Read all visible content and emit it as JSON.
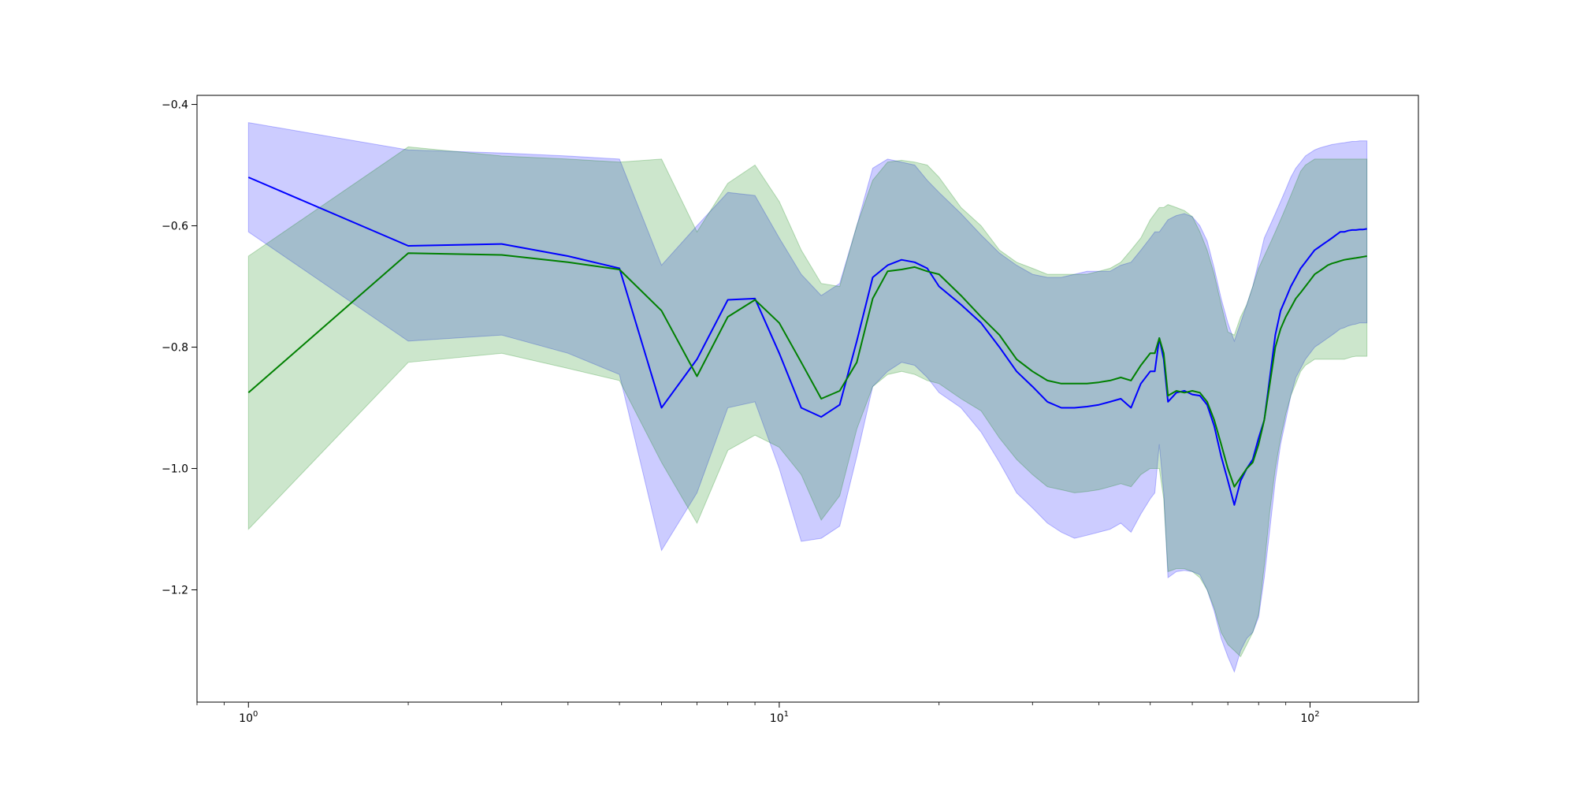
{
  "chart_data": {
    "type": "line",
    "xscale": "log",
    "xlim": [
      0.8,
      160
    ],
    "ylim": [
      -1.385,
      -0.385
    ],
    "grid": false,
    "legend": "none",
    "xticks": [
      {
        "value": 1,
        "base": "10",
        "exp": "0"
      },
      {
        "value": 10,
        "base": "10",
        "exp": "1"
      },
      {
        "value": 100,
        "base": "10",
        "exp": "2"
      }
    ],
    "yticks": [
      {
        "value": -0.4,
        "label": "−0.4"
      },
      {
        "value": -0.6,
        "label": "−0.6"
      },
      {
        "value": -0.8,
        "label": "−0.8"
      },
      {
        "value": -1.0,
        "label": "−1.0"
      },
      {
        "value": -1.2,
        "label": "−1.2"
      }
    ],
    "series": [
      {
        "color": "#0000ff",
        "band_color": "#0000ff",
        "band_opacity": 0.2,
        "x": [
          1,
          2,
          3,
          4,
          5,
          6,
          7,
          8,
          9,
          10,
          11,
          12,
          13,
          14,
          15,
          16,
          17,
          18,
          19,
          20,
          22,
          24,
          26,
          28,
          30,
          32,
          34,
          36,
          38,
          40,
          42,
          44,
          46,
          48,
          50,
          51,
          52,
          53,
          54,
          56,
          58,
          60,
          62,
          64,
          66,
          68,
          70,
          72,
          74,
          76,
          78,
          80,
          82,
          84,
          86,
          88,
          90,
          92,
          94,
          96,
          98,
          100,
          102,
          104,
          106,
          108,
          110,
          112,
          114,
          116,
          118,
          120,
          122,
          124,
          126,
          128
        ],
        "y": [
          -0.52,
          -0.633,
          -0.63,
          -0.65,
          -0.67,
          -0.9,
          -0.82,
          -0.722,
          -0.72,
          -0.81,
          -0.9,
          -0.915,
          -0.895,
          -0.79,
          -0.685,
          -0.665,
          -0.656,
          -0.66,
          -0.67,
          -0.7,
          -0.73,
          -0.76,
          -0.8,
          -0.84,
          -0.865,
          -0.89,
          -0.9,
          -0.9,
          -0.898,
          -0.895,
          -0.89,
          -0.885,
          -0.9,
          -0.86,
          -0.84,
          -0.84,
          -0.785,
          -0.82,
          -0.89,
          -0.875,
          -0.872,
          -0.878,
          -0.88,
          -0.895,
          -0.93,
          -0.98,
          -1.02,
          -1.06,
          -1.02,
          -1.0,
          -0.985,
          -0.95,
          -0.92,
          -0.85,
          -0.78,
          -0.74,
          -0.72,
          -0.7,
          -0.685,
          -0.67,
          -0.66,
          -0.65,
          -0.64,
          -0.635,
          -0.63,
          -0.625,
          -0.62,
          -0.615,
          -0.61,
          -0.61,
          -0.608,
          -0.607,
          -0.607,
          -0.606,
          -0.606,
          -0.605
        ],
        "upper": [
          -0.43,
          -0.475,
          -0.48,
          -0.485,
          -0.49,
          -0.665,
          -0.6,
          -0.545,
          -0.55,
          -0.62,
          -0.68,
          -0.715,
          -0.695,
          -0.6,
          -0.505,
          -0.49,
          -0.495,
          -0.5,
          -0.525,
          -0.545,
          -0.58,
          -0.615,
          -0.645,
          -0.665,
          -0.68,
          -0.685,
          -0.685,
          -0.68,
          -0.675,
          -0.675,
          -0.675,
          -0.665,
          -0.66,
          -0.64,
          -0.62,
          -0.61,
          -0.61,
          -0.6,
          -0.59,
          -0.583,
          -0.58,
          -0.585,
          -0.6,
          -0.625,
          -0.67,
          -0.72,
          -0.76,
          -0.79,
          -0.76,
          -0.73,
          -0.7,
          -0.66,
          -0.62,
          -0.6,
          -0.58,
          -0.56,
          -0.54,
          -0.52,
          -0.505,
          -0.495,
          -0.485,
          -0.48,
          -0.475,
          -0.472,
          -0.47,
          -0.468,
          -0.466,
          -0.465,
          -0.464,
          -0.463,
          -0.462,
          -0.461,
          -0.461,
          -0.46,
          -0.46,
          -0.46
        ],
        "lower": [
          -0.61,
          -0.79,
          -0.78,
          -0.81,
          -0.845,
          -1.135,
          -1.04,
          -0.9,
          -0.89,
          -1.0,
          -1.12,
          -1.115,
          -1.095,
          -0.98,
          -0.865,
          -0.84,
          -0.825,
          -0.83,
          -0.85,
          -0.875,
          -0.9,
          -0.94,
          -0.99,
          -1.04,
          -1.065,
          -1.09,
          -1.105,
          -1.115,
          -1.11,
          -1.105,
          -1.1,
          -1.09,
          -1.105,
          -1.075,
          -1.05,
          -1.04,
          -0.96,
          -1.04,
          -1.18,
          -1.17,
          -1.168,
          -1.17,
          -1.175,
          -1.2,
          -1.235,
          -1.28,
          -1.31,
          -1.335,
          -1.3,
          -1.28,
          -1.27,
          -1.245,
          -1.18,
          -1.1,
          -1.02,
          -0.96,
          -0.92,
          -0.88,
          -0.85,
          -0.835,
          -0.82,
          -0.81,
          -0.8,
          -0.795,
          -0.79,
          -0.785,
          -0.78,
          -0.775,
          -0.77,
          -0.768,
          -0.765,
          -0.763,
          -0.762,
          -0.76,
          -0.76,
          -0.76
        ]
      },
      {
        "color": "#008000",
        "band_color": "#008000",
        "band_opacity": 0.2,
        "x": [
          1,
          2,
          3,
          4,
          5,
          6,
          7,
          8,
          9,
          10,
          11,
          12,
          13,
          14,
          15,
          16,
          17,
          18,
          19,
          20,
          22,
          24,
          26,
          28,
          30,
          32,
          34,
          36,
          38,
          40,
          42,
          44,
          46,
          48,
          50,
          51,
          52,
          53,
          54,
          56,
          58,
          60,
          62,
          64,
          66,
          68,
          70,
          72,
          74,
          76,
          78,
          80,
          82,
          84,
          86,
          88,
          90,
          92,
          94,
          96,
          98,
          100,
          102,
          104,
          106,
          108,
          110,
          112,
          114,
          116,
          118,
          120,
          122,
          124,
          126,
          128
        ],
        "y": [
          -0.875,
          -0.645,
          -0.648,
          -0.66,
          -0.672,
          -0.74,
          -0.848,
          -0.75,
          -0.722,
          -0.76,
          -0.825,
          -0.885,
          -0.872,
          -0.825,
          -0.72,
          -0.675,
          -0.672,
          -0.668,
          -0.675,
          -0.68,
          -0.715,
          -0.75,
          -0.78,
          -0.82,
          -0.84,
          -0.855,
          -0.86,
          -0.86,
          -0.86,
          -0.858,
          -0.855,
          -0.85,
          -0.855,
          -0.83,
          -0.81,
          -0.81,
          -0.785,
          -0.81,
          -0.88,
          -0.872,
          -0.875,
          -0.872,
          -0.875,
          -0.89,
          -0.92,
          -0.96,
          -1.0,
          -1.03,
          -1.015,
          -1.0,
          -0.99,
          -0.96,
          -0.92,
          -0.86,
          -0.8,
          -0.77,
          -0.75,
          -0.735,
          -0.72,
          -0.71,
          -0.7,
          -0.69,
          -0.68,
          -0.675,
          -0.67,
          -0.665,
          -0.662,
          -0.66,
          -0.658,
          -0.656,
          -0.655,
          -0.654,
          -0.653,
          -0.652,
          -0.651,
          -0.65
        ],
        "upper": [
          -0.65,
          -0.47,
          -0.485,
          -0.49,
          -0.495,
          -0.49,
          -0.61,
          -0.53,
          -0.5,
          -0.56,
          -0.64,
          -0.695,
          -0.7,
          -0.6,
          -0.525,
          -0.495,
          -0.492,
          -0.495,
          -0.5,
          -0.52,
          -0.57,
          -0.6,
          -0.64,
          -0.66,
          -0.67,
          -0.68,
          -0.68,
          -0.68,
          -0.68,
          -0.675,
          -0.67,
          -0.66,
          -0.64,
          -0.62,
          -0.59,
          -0.58,
          -0.57,
          -0.57,
          -0.565,
          -0.57,
          -0.575,
          -0.585,
          -0.61,
          -0.64,
          -0.68,
          -0.73,
          -0.775,
          -0.78,
          -0.75,
          -0.73,
          -0.7,
          -0.67,
          -0.65,
          -0.63,
          -0.61,
          -0.59,
          -0.57,
          -0.55,
          -0.53,
          -0.51,
          -0.5,
          -0.495,
          -0.49,
          -0.49,
          -0.49,
          -0.49,
          -0.49,
          -0.49,
          -0.49,
          -0.49,
          -0.49,
          -0.49,
          -0.49,
          -0.49,
          -0.49,
          -0.49
        ],
        "lower": [
          -1.1,
          -0.825,
          -0.81,
          -0.835,
          -0.855,
          -0.99,
          -1.09,
          -0.97,
          -0.945,
          -0.965,
          -1.01,
          -1.085,
          -1.045,
          -0.935,
          -0.865,
          -0.845,
          -0.84,
          -0.845,
          -0.855,
          -0.86,
          -0.885,
          -0.905,
          -0.95,
          -0.985,
          -1.01,
          -1.03,
          -1.035,
          -1.04,
          -1.038,
          -1.035,
          -1.03,
          -1.025,
          -1.03,
          -1.01,
          -1.0,
          -1.0,
          -1.0,
          -1.05,
          -1.17,
          -1.165,
          -1.165,
          -1.17,
          -1.18,
          -1.2,
          -1.23,
          -1.27,
          -1.29,
          -1.3,
          -1.31,
          -1.29,
          -1.27,
          -1.24,
          -1.16,
          -1.07,
          -1.0,
          -0.95,
          -0.91,
          -0.88,
          -0.86,
          -0.84,
          -0.83,
          -0.825,
          -0.82,
          -0.82,
          -0.82,
          -0.82,
          -0.82,
          -0.82,
          -0.82,
          -0.82,
          -0.818,
          -0.816,
          -0.815,
          -0.815,
          -0.815,
          -0.815
        ]
      }
    ]
  }
}
